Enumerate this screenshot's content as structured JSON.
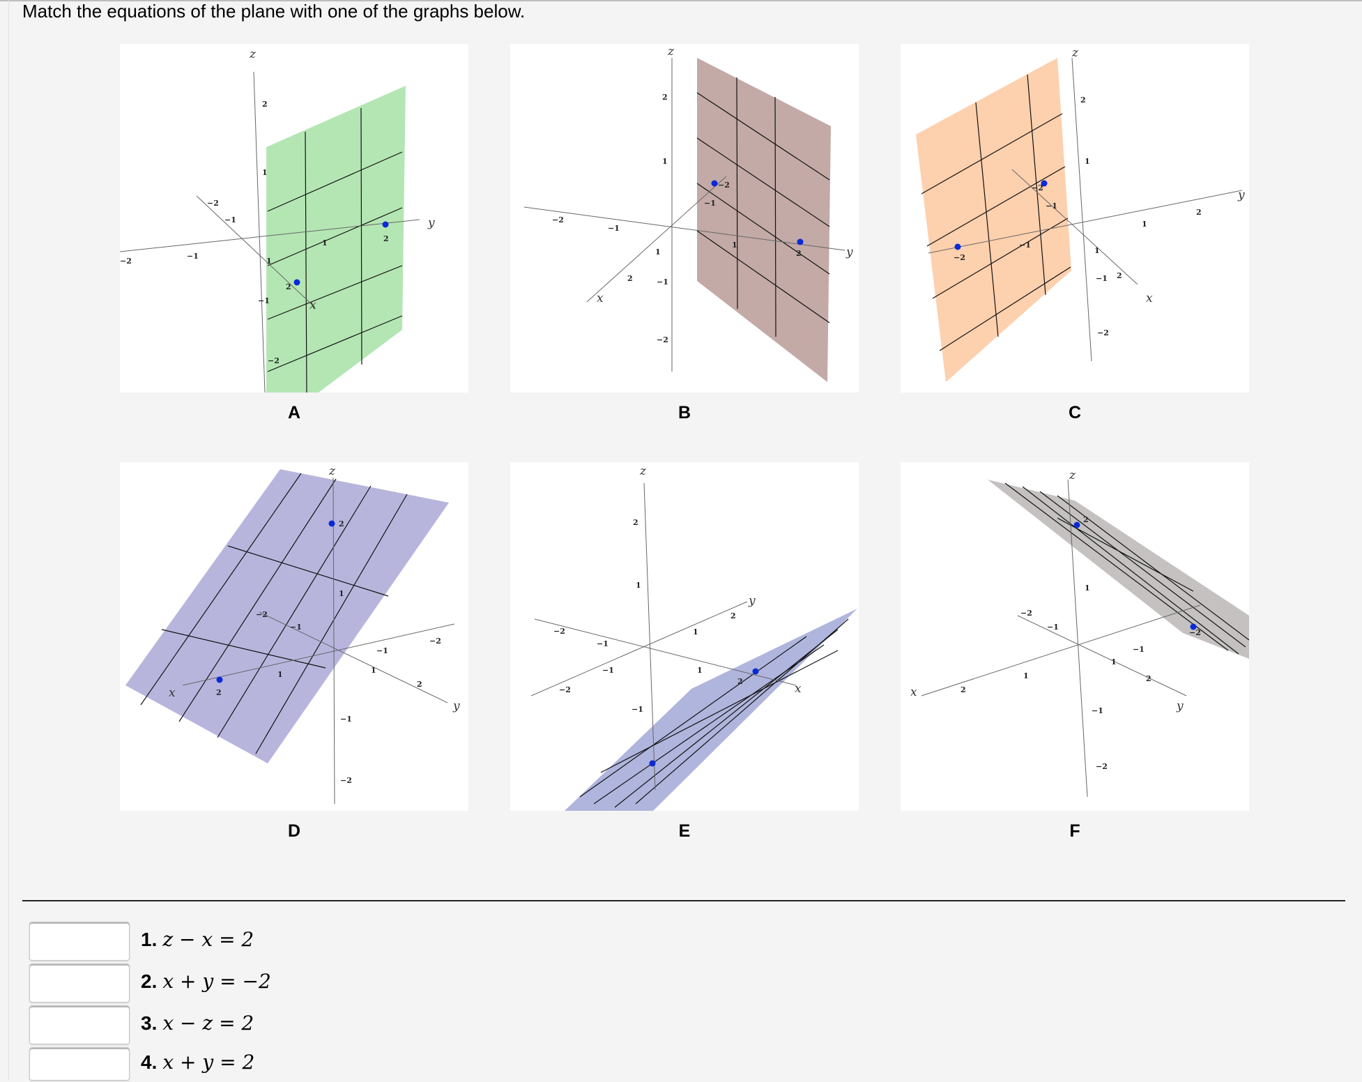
{
  "prompt": "Match the equations of the plane with one of the graphs below.",
  "graphs": [
    {
      "label": "A",
      "color": "#a8e2a8"
    },
    {
      "label": "B",
      "color": "#b8a29d"
    },
    {
      "label": "C",
      "color": "#ffcaa3"
    },
    {
      "label": "D",
      "color": "#aca9d9"
    },
    {
      "label": "E",
      "color": "#aab0d9"
    },
    {
      "label": "F",
      "color": "#c2bebe"
    }
  ],
  "axes": {
    "x": "x",
    "y": "y",
    "z": "z"
  },
  "ticks": {
    "neg2": "−2",
    "neg1": "−1",
    "one": "1",
    "two": "2"
  },
  "equations": [
    {
      "num": "1.",
      "text": "z − x = 2",
      "answer": ""
    },
    {
      "num": "2.",
      "text": "x + y = −2",
      "answer": ""
    },
    {
      "num": "3.",
      "text": "x − z = 2",
      "answer": ""
    },
    {
      "num": "4.",
      "text": "x + y = 2",
      "answer": ""
    }
  ]
}
